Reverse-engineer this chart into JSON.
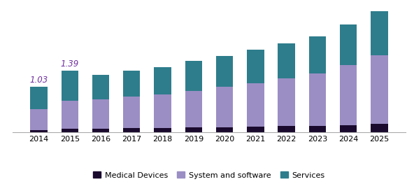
{
  "years": [
    2014,
    2015,
    2016,
    2017,
    2018,
    2019,
    2020,
    2021,
    2022,
    2023,
    2024,
    2025
  ],
  "medical_devices": [
    0.06,
    0.09,
    0.09,
    0.1,
    0.1,
    0.11,
    0.12,
    0.13,
    0.14,
    0.15,
    0.17,
    0.19
  ],
  "system_software": [
    0.47,
    0.63,
    0.66,
    0.7,
    0.75,
    0.82,
    0.9,
    0.98,
    1.07,
    1.17,
    1.35,
    1.54
  ],
  "services": [
    0.5,
    0.67,
    0.55,
    0.58,
    0.62,
    0.67,
    0.7,
    0.75,
    0.79,
    0.83,
    0.9,
    0.99
  ],
  "annotations": [
    {
      "year_idx": 0,
      "text": "1.03",
      "color": "#7030a0"
    },
    {
      "year_idx": 1,
      "text": "1.39",
      "color": "#7030a0"
    }
  ],
  "bar_width": 0.55,
  "color_medical": "#1a0a2e",
  "color_software": "#9b8ec4",
  "color_services": "#2e7d8c",
  "legend_labels": [
    "Medical Devices",
    "System and software",
    "Services"
  ],
  "background_color": "#ffffff",
  "ylim": [
    0,
    2.85
  ],
  "figsize": [
    5.92,
    2.63
  ],
  "dpi": 100
}
